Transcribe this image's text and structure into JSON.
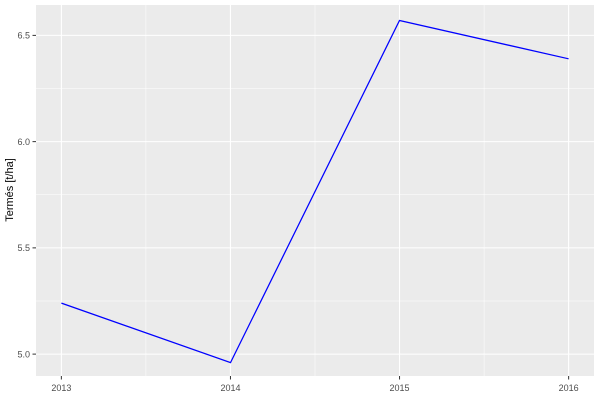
{
  "chart_data": {
    "type": "line",
    "title": "",
    "xlabel": "",
    "ylabel": "Termés [t/ha]",
    "x": [
      2013,
      2014,
      2015,
      2016
    ],
    "y": [
      5.24,
      4.96,
      6.57,
      6.39
    ],
    "x_ticks": [
      2013,
      2014,
      2015,
      2016
    ],
    "y_ticks": [
      5.0,
      5.5,
      6.0,
      6.5
    ],
    "x_minor_ticks": [
      2013.5,
      2014.5,
      2015.5
    ],
    "y_minor_ticks": [
      5.25,
      5.75,
      6.25
    ],
    "xlim": [
      2012.85,
      2016.15
    ],
    "ylim": [
      4.897,
      6.643
    ],
    "grid": true,
    "legend": "none",
    "colors": {
      "line": "#0000FF",
      "panel_bg": "#EBEBEB",
      "grid_major": "#FFFFFF",
      "grid_minor": "#FFFFFF",
      "tick_mark": "#333333",
      "tick_label": "#4D4D4D",
      "axis_title": "#000000",
      "figure_bg": "#FFFFFF"
    }
  }
}
